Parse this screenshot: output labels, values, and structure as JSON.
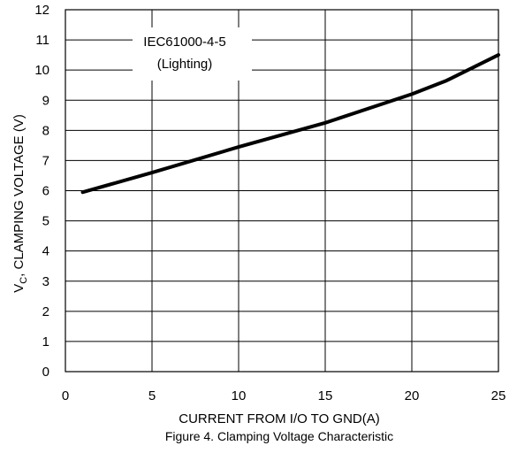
{
  "chart_data": {
    "type": "line",
    "xlabel": "CURRENT FROM I/O TO GND(A)",
    "ylabel_main": "V",
    "ylabel_sub": "C",
    "ylabel_rest": ", CLAMPING VOLTAGE  (V)",
    "caption": "Figure 4. Clamping Voltage Characteristic",
    "annotation": [
      "IEC61000-4-5",
      "(Lighting)"
    ],
    "xlim": [
      0,
      25
    ],
    "ylim": [
      0,
      12
    ],
    "x_ticks": [
      0,
      5,
      10,
      15,
      20,
      25
    ],
    "y_ticks": [
      0,
      1,
      2,
      3,
      4,
      5,
      6,
      7,
      8,
      9,
      10,
      11,
      12
    ],
    "x_tick_labels": [
      "0",
      "5",
      "10",
      "15",
      "20",
      "25"
    ],
    "y_tick_labels": [
      "0",
      "1",
      "2",
      "3",
      "4",
      "5",
      "6",
      "7",
      "8",
      "9",
      "10",
      "11",
      "12"
    ],
    "grid": true,
    "line_color": "#000000",
    "series": [
      {
        "x": [
          1,
          5,
          10,
          15,
          20,
          22,
          25
        ],
        "y": [
          5.95,
          6.6,
          7.45,
          8.25,
          9.2,
          9.65,
          10.5
        ]
      }
    ]
  }
}
